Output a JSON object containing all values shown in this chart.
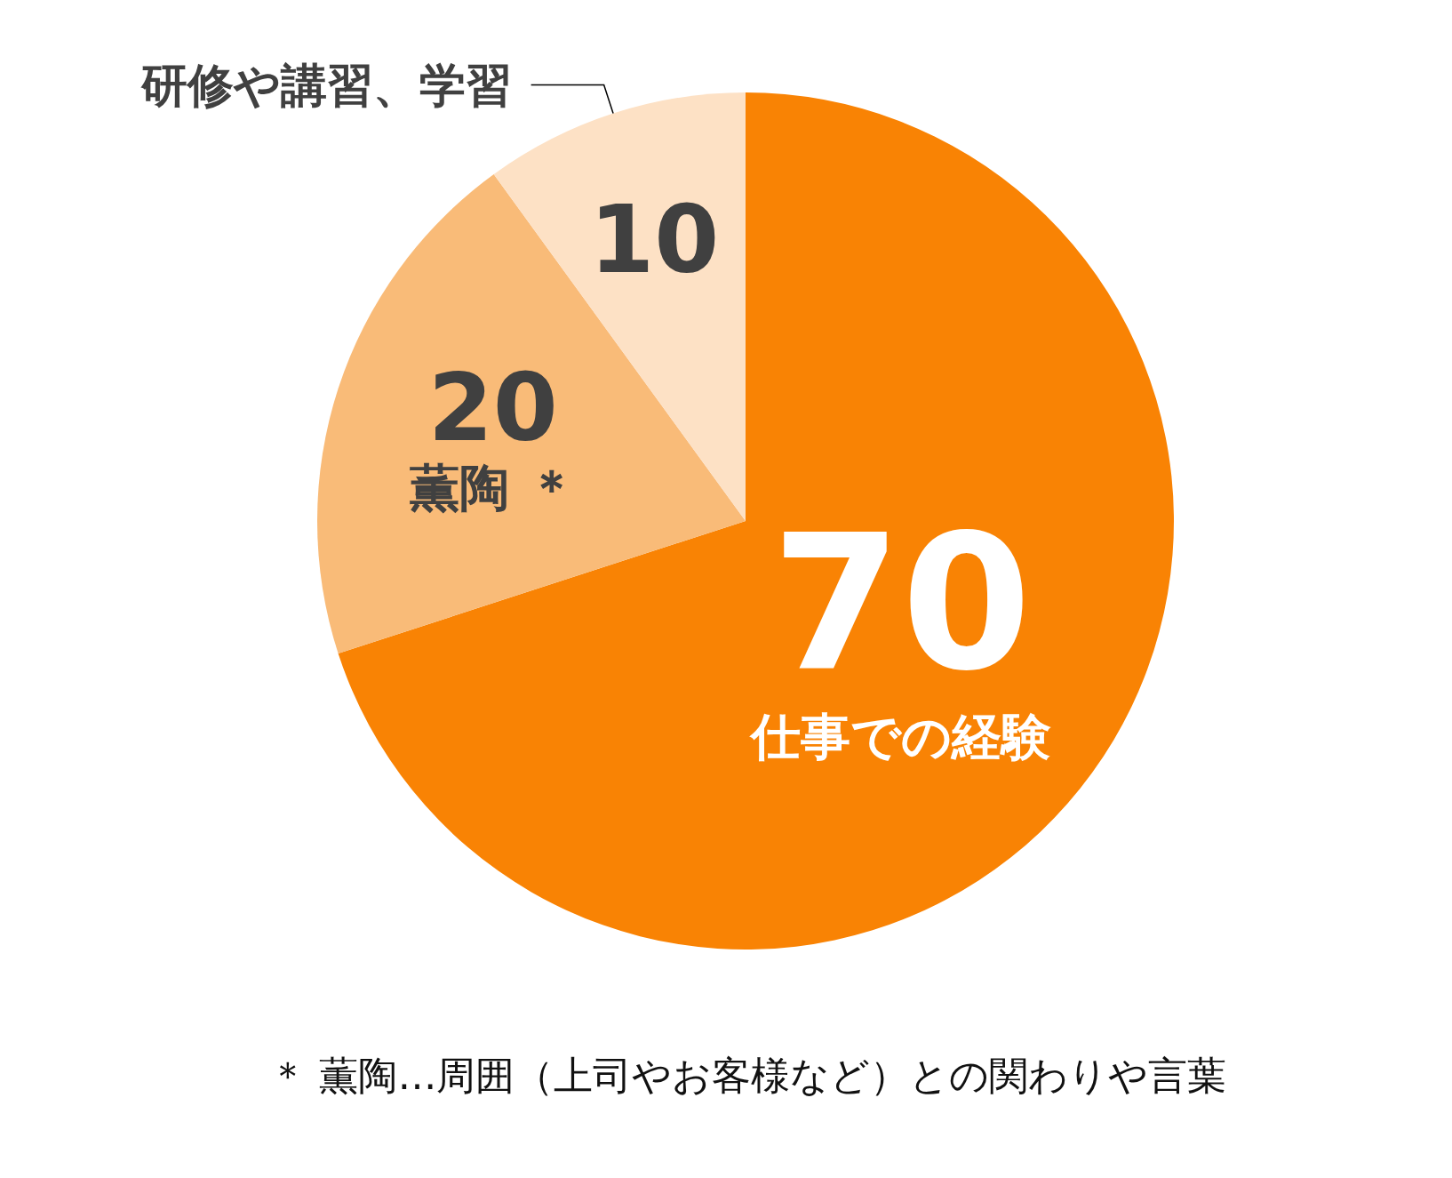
{
  "chart_data": {
    "type": "pie",
    "categories": [
      "仕事での経験",
      "薫陶 ＊",
      "研修や講習、学習"
    ],
    "values": [
      70,
      20,
      10
    ],
    "colors": [
      "#f98304",
      "#f9bb78",
      "#fde1c5"
    ],
    "data_labels": true,
    "legend": false,
    "annotations": [
      "＊ 薫陶…周囲（上司やお客様など）との関わりや言葉"
    ]
  }
}
